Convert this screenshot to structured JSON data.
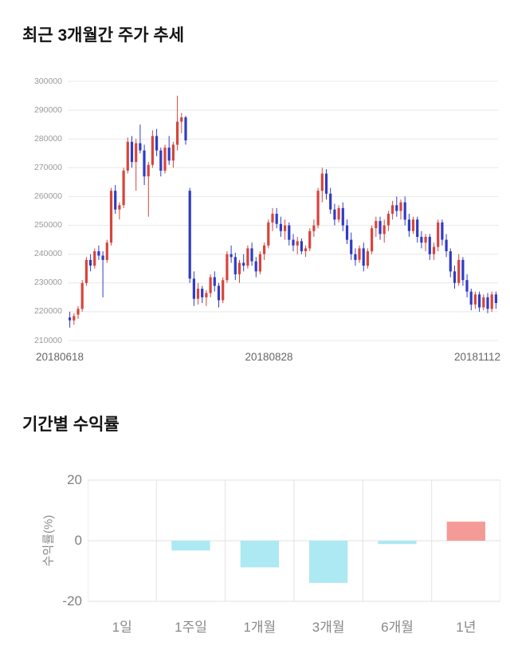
{
  "chart_data": [
    {
      "type": "candlestick",
      "title": "최근 3개월간 주가 추세",
      "ylim": [
        210000,
        300000
      ],
      "y_ticks": [
        300000,
        290000,
        280000,
        270000,
        260000,
        250000,
        240000,
        230000,
        220000,
        210000
      ],
      "x_labels": [
        "20180618",
        "20180828",
        "20181112"
      ],
      "grid": "horizontal",
      "up_color": "#d6453c",
      "down_color": "#2f3cc4",
      "candles_ohlc": [
        [
          218000,
          220000,
          214500,
          217000
        ],
        [
          217000,
          219500,
          215500,
          218500
        ],
        [
          219000,
          222000,
          217500,
          221000
        ],
        [
          221000,
          231000,
          220000,
          230000
        ],
        [
          230000,
          239000,
          229000,
          238000
        ],
        [
          238000,
          240000,
          234000,
          236000
        ],
        [
          236000,
          242000,
          235000,
          241000
        ],
        [
          241000,
          243000,
          238000,
          239500
        ],
        [
          239500,
          241000,
          225000,
          238000
        ],
        [
          238000,
          245000,
          237000,
          244000
        ],
        [
          244000,
          263000,
          243000,
          262000
        ],
        [
          262000,
          264000,
          254000,
          255500
        ],
        [
          255500,
          258000,
          252000,
          257000
        ],
        [
          257000,
          270000,
          256000,
          269000
        ],
        [
          269000,
          280500,
          268000,
          279000
        ],
        [
          279000,
          281000,
          270000,
          272000
        ],
        [
          272000,
          280000,
          262000,
          278500
        ],
        [
          278500,
          285000,
          275000,
          276000
        ],
        [
          276000,
          278000,
          264000,
          267000
        ],
        [
          267000,
          272000,
          253000,
          271000
        ],
        [
          271000,
          283000,
          270000,
          281000
        ],
        [
          281000,
          283500,
          274000,
          276000
        ],
        [
          276000,
          277000,
          267000,
          269000
        ],
        [
          269000,
          278000,
          268000,
          277000
        ],
        [
          277000,
          281000,
          271000,
          272500
        ],
        [
          272500,
          279000,
          270000,
          278000
        ],
        [
          278000,
          295000,
          276000,
          286000
        ],
        [
          286000,
          289000,
          282000,
          287500
        ],
        [
          287500,
          288000,
          278000,
          279500
        ],
        [
          262000,
          263000,
          230000,
          231500
        ],
        [
          231500,
          234000,
          222000,
          224500
        ],
        [
          224500,
          230000,
          222500,
          228000
        ],
        [
          228000,
          229000,
          223000,
          225000
        ],
        [
          225000,
          227500,
          222000,
          226500
        ],
        [
          226500,
          233000,
          225000,
          232000
        ],
        [
          232000,
          234000,
          227000,
          229000
        ],
        [
          229000,
          230000,
          221500,
          224000
        ],
        [
          224000,
          232000,
          223000,
          231000
        ],
        [
          231000,
          241000,
          230000,
          240000
        ],
        [
          240000,
          243000,
          237000,
          239000
        ],
        [
          239000,
          240500,
          231000,
          233000
        ],
        [
          233000,
          238000,
          230000,
          237000
        ],
        [
          237000,
          240000,
          234000,
          236000
        ],
        [
          236000,
          243000,
          235000,
          242000
        ],
        [
          242000,
          244000,
          236000,
          237500
        ],
        [
          237500,
          239000,
          232000,
          234000
        ],
        [
          234000,
          241000,
          233000,
          240000
        ],
        [
          240000,
          244000,
          238000,
          243000
        ],
        [
          243000,
          252000,
          242000,
          251000
        ],
        [
          251000,
          256000,
          248000,
          254000
        ],
        [
          254000,
          256000,
          249000,
          250500
        ],
        [
          250500,
          253000,
          246000,
          248000
        ],
        [
          248000,
          252000,
          245000,
          250000
        ],
        [
          250000,
          251000,
          243000,
          245000
        ],
        [
          245000,
          247000,
          241000,
          243000
        ],
        [
          243000,
          246000,
          240000,
          244500
        ],
        [
          244500,
          245500,
          240000,
          241000
        ],
        [
          241000,
          243000,
          239000,
          242000
        ],
        [
          242000,
          249000,
          241000,
          248000
        ],
        [
          248000,
          252000,
          246000,
          250000
        ],
        [
          250000,
          263000,
          249000,
          262000
        ],
        [
          262000,
          270000,
          258000,
          268000
        ],
        [
          268000,
          269500,
          259000,
          261000
        ],
        [
          261000,
          263000,
          254000,
          255500
        ],
        [
          255500,
          257500,
          250000,
          252000
        ],
        [
          252000,
          257000,
          251000,
          256000
        ],
        [
          256000,
          258000,
          248000,
          250000
        ],
        [
          250000,
          252000,
          243500,
          245000
        ],
        [
          245000,
          247500,
          238000,
          240000
        ],
        [
          240000,
          242000,
          236000,
          238000
        ],
        [
          238000,
          243000,
          237000,
          242000
        ],
        [
          242000,
          244000,
          234000,
          236000
        ],
        [
          236000,
          242000,
          235000,
          241000
        ],
        [
          241000,
          250000,
          240000,
          249000
        ],
        [
          249000,
          253000,
          246000,
          251500
        ],
        [
          251500,
          253000,
          245000,
          247000
        ],
        [
          247000,
          252000,
          244000,
          250000
        ],
        [
          250000,
          255000,
          248000,
          254000
        ],
        [
          254000,
          258500,
          252000,
          257000
        ],
        [
          257000,
          260000,
          253000,
          255000
        ],
        [
          255000,
          259000,
          252000,
          258000
        ],
        [
          258000,
          260000,
          250000,
          252000
        ],
        [
          252000,
          254000,
          246000,
          248000
        ],
        [
          248000,
          253000,
          247000,
          252000
        ],
        [
          252000,
          253000,
          244000,
          246000
        ],
        [
          246000,
          248000,
          242000,
          244000
        ],
        [
          244000,
          247000,
          241000,
          246000
        ],
        [
          246000,
          247000,
          238000,
          240000
        ],
        [
          240000,
          244000,
          238000,
          242500
        ],
        [
          242500,
          252000,
          241000,
          251000
        ],
        [
          251000,
          252000,
          243000,
          245000
        ],
        [
          245000,
          247000,
          239000,
          241000
        ],
        [
          241000,
          242000,
          232000,
          234000
        ],
        [
          234000,
          236000,
          228000,
          230000
        ],
        [
          230000,
          240000,
          229000,
          238000
        ],
        [
          238000,
          239000,
          229000,
          231000
        ],
        [
          231000,
          233000,
          225000,
          227000
        ],
        [
          227000,
          228000,
          220500,
          222500
        ],
        [
          222500,
          227000,
          221000,
          226000
        ],
        [
          226000,
          227000,
          220000,
          221500
        ],
        [
          221500,
          226000,
          220500,
          225000
        ],
        [
          225000,
          226500,
          219500,
          221000
        ],
        [
          221000,
          227000,
          220000,
          226000
        ],
        [
          226000,
          227000,
          221000,
          223000
        ]
      ]
    },
    {
      "type": "bar",
      "title": "기간별 수익률",
      "ylabel": "수익률(%)",
      "categories": [
        "1일",
        "1주일",
        "1개월",
        "3개월",
        "6개월",
        "1년"
      ],
      "values": [
        0,
        -3.2,
        -8.8,
        -13.9,
        -1.1,
        6.3
      ],
      "y_ticks": [
        20,
        0,
        -20
      ],
      "ylim": [
        -20,
        20
      ],
      "grid": "both",
      "neg_color": "#ace9f2",
      "pos_color": "#f59b97"
    }
  ]
}
